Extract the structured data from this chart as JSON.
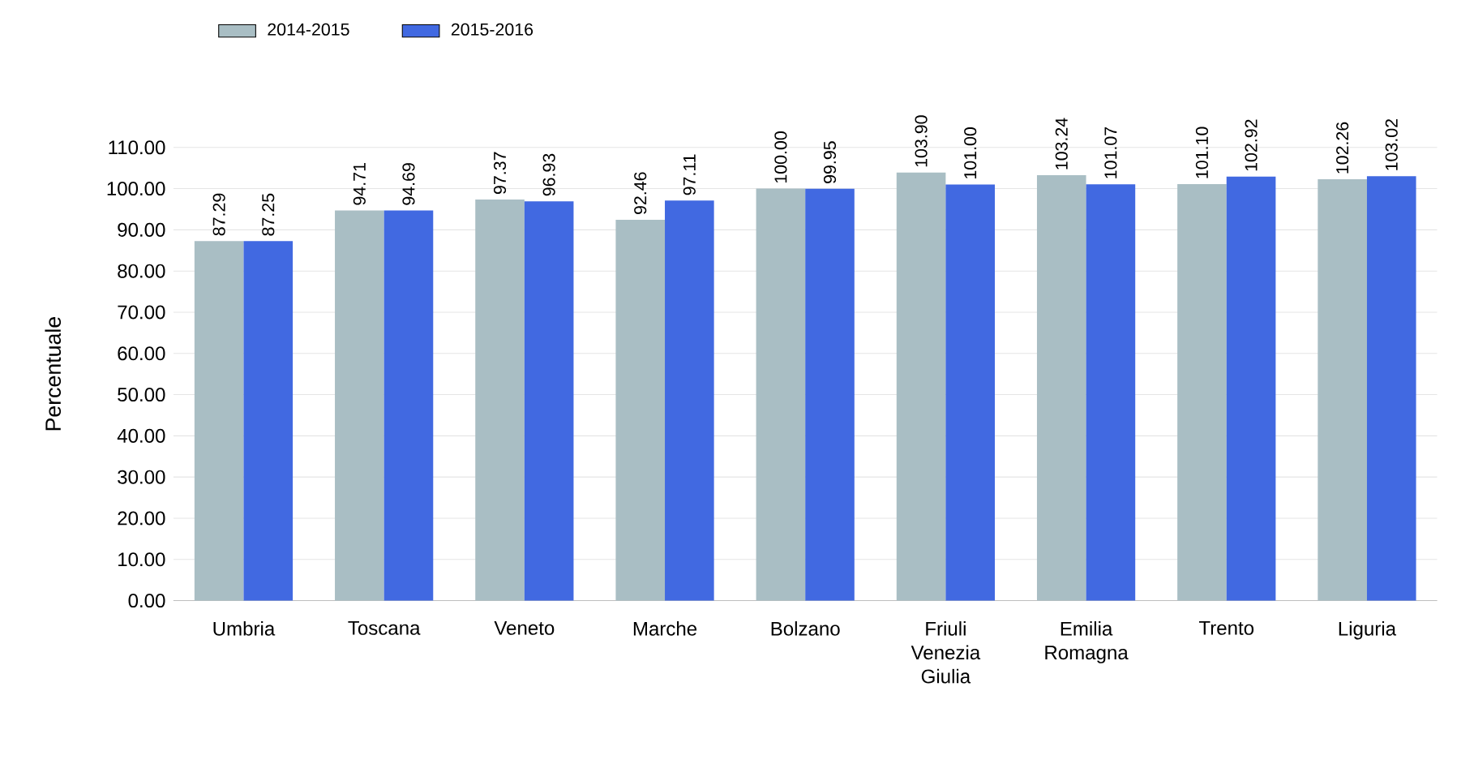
{
  "chart_data": {
    "type": "bar",
    "ylabel": "Percentuale",
    "categories": [
      "Umbria",
      "Toscana",
      "Veneto",
      "Marche",
      "Bolzano",
      "Friuli Venezia Giulia",
      "Emilia Romagna",
      "Trento",
      "Liguria"
    ],
    "series": [
      {
        "name": "2014-2015",
        "color": "#a9bec4",
        "values": [
          87.29,
          94.71,
          97.37,
          92.46,
          100.0,
          103.9,
          103.24,
          101.1,
          102.26
        ],
        "value_labels": [
          "87.29",
          "94.71",
          "97.37",
          "92.46",
          "100.00",
          "103.90",
          "103.24",
          "101.10",
          "102.26"
        ]
      },
      {
        "name": "2015-2016",
        "color": "#4169e1",
        "values": [
          87.25,
          94.69,
          96.93,
          97.11,
          99.95,
          101.0,
          101.07,
          102.92,
          103.02
        ],
        "value_labels": [
          "87.25",
          "94.69",
          "96.93",
          "97.11",
          "99.95",
          "101.00",
          "101.07",
          "102.92",
          "103.02"
        ]
      }
    ],
    "ylim": [
      0,
      110
    ],
    "yticks": [
      {
        "value": 0,
        "label": "0.00"
      },
      {
        "value": 10,
        "label": "10.00"
      },
      {
        "value": 20,
        "label": "20.00"
      },
      {
        "value": 30,
        "label": "30.00"
      },
      {
        "value": 40,
        "label": "40.00"
      },
      {
        "value": 50,
        "label": "50.00"
      },
      {
        "value": 60,
        "label": "60.00"
      },
      {
        "value": 70,
        "label": "70.00"
      },
      {
        "value": 80,
        "label": "80.00"
      },
      {
        "value": 90,
        "label": "90.00"
      },
      {
        "value": 100,
        "label": "100.00"
      },
      {
        "value": 110,
        "label": "110.00"
      }
    ],
    "grid": "y",
    "legend": "top left"
  }
}
